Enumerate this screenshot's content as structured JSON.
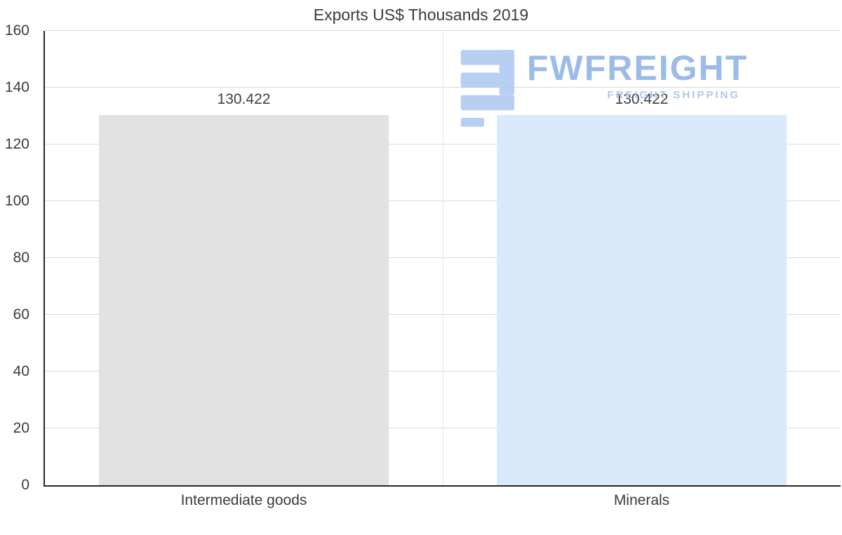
{
  "chart_data": {
    "type": "bar",
    "title": "Exports US$ Thousands 2019",
    "categories": [
      "Intermediate goods",
      "Minerals"
    ],
    "values": [
      130.422,
      130.422
    ],
    "value_labels": [
      "130.422",
      "130.422"
    ],
    "bar_colors": [
      "#e2e2e2",
      "#d9e8fb"
    ],
    "xlabel": "",
    "ylabel": "",
    "ylim": [
      0,
      160
    ],
    "yticks": [
      0,
      20,
      40,
      60,
      80,
      100,
      120,
      140,
      160
    ],
    "grid": true,
    "legend": "none"
  },
  "watermark": {
    "brand": "FWFREIGHT",
    "tagline": "FREIGHT SHIPPING",
    "color": "#7fa9e2"
  }
}
